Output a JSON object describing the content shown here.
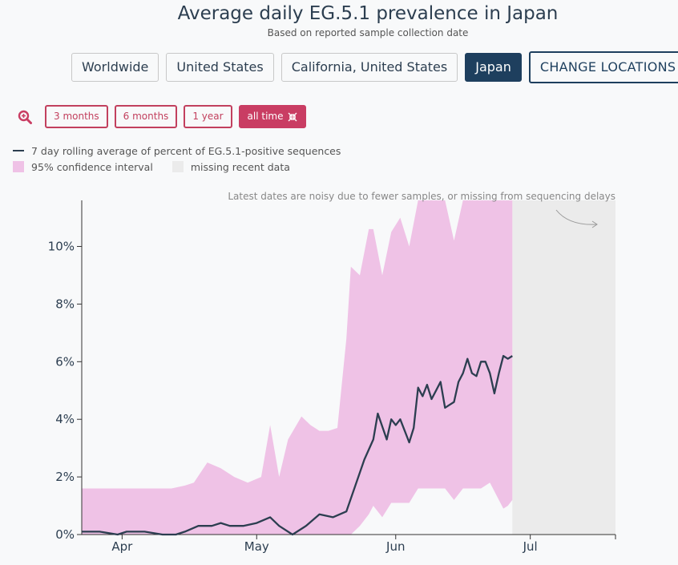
{
  "header": {
    "title": "Average daily EG.5.1 prevalence in Japan",
    "subtitle": "Based on reported sample collection date"
  },
  "locations": {
    "buttons": [
      "Worldwide",
      "United States",
      "California, United States",
      "Japan"
    ],
    "active": "Japan",
    "change_label": "CHANGE LOCATIONS"
  },
  "ranges": {
    "buttons": [
      "3 months",
      "6 months",
      "1 year",
      "all time"
    ],
    "active": "all time"
  },
  "legend": {
    "line_label": "7 day rolling average of percent of EG.5.1-positive sequences",
    "ci_label": "95% confidence interval",
    "missing_label": "missing recent data"
  },
  "colors": {
    "line": "#2c3e50",
    "ci": "#efc2e6",
    "missing": "#ebebeb",
    "accent": "#c93d63",
    "navy": "#1e3f5e"
  },
  "chart_data": {
    "type": "line",
    "title": "Average daily EG.5.1 prevalence in Japan",
    "subtitle": "Based on reported sample collection date",
    "annotation": "Latest dates are noisy due to fewer samples, or missing from sequencing delays",
    "x_ticks": [
      "Apr",
      "May",
      "Jun",
      "Jul"
    ],
    "x_tick_dates": [
      "2023-04-01",
      "2023-05-01",
      "2023-06-01",
      "2023-07-01"
    ],
    "xlim": [
      "2023-03-23",
      "2023-07-20"
    ],
    "missing_data_range": [
      "2023-06-27",
      "2023-07-20"
    ],
    "y_ticks": [
      0,
      2,
      4,
      6,
      8,
      10
    ],
    "y_tick_labels": [
      "0%",
      "2%",
      "4%",
      "6%",
      "8%",
      "10%"
    ],
    "ylim": [
      0,
      11.6
    ],
    "y_unit": "%",
    "series": [
      {
        "name": "7 day rolling average of percent of EG.5.1-positive sequences",
        "x": [
          "2023-03-23",
          "2023-03-27",
          "2023-03-31",
          "2023-04-02",
          "2023-04-06",
          "2023-04-10",
          "2023-04-13",
          "2023-04-15",
          "2023-04-18",
          "2023-04-21",
          "2023-04-23",
          "2023-04-25",
          "2023-04-28",
          "2023-05-01",
          "2023-05-04",
          "2023-05-06",
          "2023-05-09",
          "2023-05-12",
          "2023-05-15",
          "2023-05-18",
          "2023-05-21",
          "2023-05-23",
          "2023-05-25",
          "2023-05-27",
          "2023-05-28",
          "2023-05-30",
          "2023-05-31",
          "2023-06-01",
          "2023-06-02",
          "2023-06-03",
          "2023-06-04",
          "2023-06-05",
          "2023-06-06",
          "2023-06-07",
          "2023-06-08",
          "2023-06-09",
          "2023-06-10",
          "2023-06-11",
          "2023-06-12",
          "2023-06-13",
          "2023-06-14",
          "2023-06-15",
          "2023-06-16",
          "2023-06-17",
          "2023-06-18",
          "2023-06-19",
          "2023-06-20",
          "2023-06-21",
          "2023-06-22",
          "2023-06-23",
          "2023-06-24",
          "2023-06-25",
          "2023-06-26",
          "2023-06-27"
        ],
        "values": [
          0.1,
          0.1,
          0.0,
          0.1,
          0.1,
          0.0,
          0.0,
          0.1,
          0.3,
          0.3,
          0.4,
          0.3,
          0.3,
          0.4,
          0.6,
          0.3,
          0.0,
          0.3,
          0.7,
          0.6,
          0.8,
          1.7,
          2.6,
          3.3,
          4.2,
          3.3,
          4.0,
          3.8,
          4.0,
          3.6,
          3.2,
          3.7,
          5.1,
          4.8,
          5.2,
          4.7,
          5.0,
          5.3,
          4.4,
          4.5,
          4.6,
          5.3,
          5.6,
          6.1,
          5.6,
          5.5,
          6.0,
          6.0,
          5.6,
          4.9,
          5.6,
          6.2,
          6.1,
          6.2
        ]
      }
    ],
    "ci": {
      "name": "95% confidence interval",
      "x": [
        "2023-03-23",
        "2023-03-27",
        "2023-03-31",
        "2023-04-04",
        "2023-04-08",
        "2023-04-12",
        "2023-04-15",
        "2023-04-17",
        "2023-04-20",
        "2023-04-23",
        "2023-04-26",
        "2023-04-29",
        "2023-05-02",
        "2023-05-04",
        "2023-05-06",
        "2023-05-08",
        "2023-05-11",
        "2023-05-13",
        "2023-05-15",
        "2023-05-17",
        "2023-05-19",
        "2023-05-21",
        "2023-05-22",
        "2023-05-24",
        "2023-05-26",
        "2023-05-27",
        "2023-05-29",
        "2023-05-31",
        "2023-06-02",
        "2023-06-04",
        "2023-06-06",
        "2023-06-08",
        "2023-06-10",
        "2023-06-12",
        "2023-06-14",
        "2023-06-16",
        "2023-06-18",
        "2023-06-20",
        "2023-06-22",
        "2023-06-24",
        "2023-06-25",
        "2023-06-26",
        "2023-06-27"
      ],
      "upper": [
        1.6,
        1.6,
        1.6,
        1.6,
        1.6,
        1.6,
        1.7,
        1.8,
        2.5,
        2.3,
        2.0,
        1.8,
        2.0,
        3.8,
        2.0,
        3.3,
        4.1,
        3.8,
        3.6,
        3.6,
        3.7,
        6.8,
        9.3,
        9.0,
        10.6,
        10.6,
        9.0,
        10.5,
        11.0,
        10.0,
        11.6,
        11.6,
        11.6,
        11.6,
        10.2,
        11.6,
        11.6,
        11.6,
        11.6,
        11.6,
        11.6,
        11.6,
        11.6
      ],
      "lower": [
        0.0,
        0.0,
        0.0,
        0.0,
        0.0,
        0.0,
        0.0,
        0.0,
        0.0,
        0.0,
        0.0,
        0.0,
        0.0,
        0.0,
        0.0,
        0.0,
        0.0,
        0.0,
        0.0,
        0.0,
        0.0,
        0.0,
        0.0,
        0.3,
        0.7,
        1.0,
        0.6,
        1.1,
        1.1,
        1.1,
        1.6,
        1.6,
        1.6,
        1.6,
        1.2,
        1.6,
        1.6,
        1.6,
        1.8,
        1.2,
        0.9,
        1.0,
        1.2
      ]
    }
  }
}
